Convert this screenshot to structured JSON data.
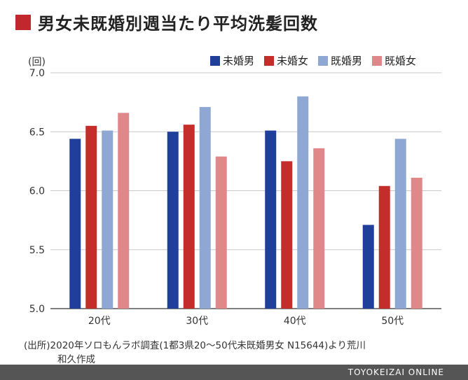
{
  "title": "男女未既婚別週当たり平均洗髪回数",
  "unit_label": "(回)",
  "source_line1": "(出所)2020年ソロもんラボ調査(1都3県20〜50代未既婚男女 N15644)より荒川",
  "source_line2": "和久作成",
  "footer_text": "TOYOKEIZAI ONLINE",
  "chart_data": {
    "type": "bar",
    "title": "男女未既婚別週当たり平均洗髪回数",
    "ylabel": "(回)",
    "xlabel": "",
    "ylim": [
      5.0,
      7.0
    ],
    "yticks": [
      5.0,
      5.5,
      6.0,
      6.5,
      7.0
    ],
    "ytick_labels": [
      "5.0",
      "5.5",
      "6.0",
      "6.5",
      "7.0"
    ],
    "categories": [
      "20代",
      "30代",
      "40代",
      "50代"
    ],
    "grid": true,
    "legend_position": "top-right",
    "series": [
      {
        "name": "未婚男",
        "color": "#1f3f9a",
        "values": [
          6.44,
          6.5,
          6.51,
          5.71
        ]
      },
      {
        "name": "未婚女",
        "color": "#c42d2a",
        "values": [
          6.55,
          6.56,
          6.25,
          6.04
        ]
      },
      {
        "name": "既婚男",
        "color": "#8fa8d3",
        "values": [
          6.51,
          6.71,
          6.8,
          6.44
        ]
      },
      {
        "name": "既婚女",
        "color": "#e0878a",
        "values": [
          6.66,
          6.29,
          6.36,
          6.11
        ]
      }
    ]
  }
}
